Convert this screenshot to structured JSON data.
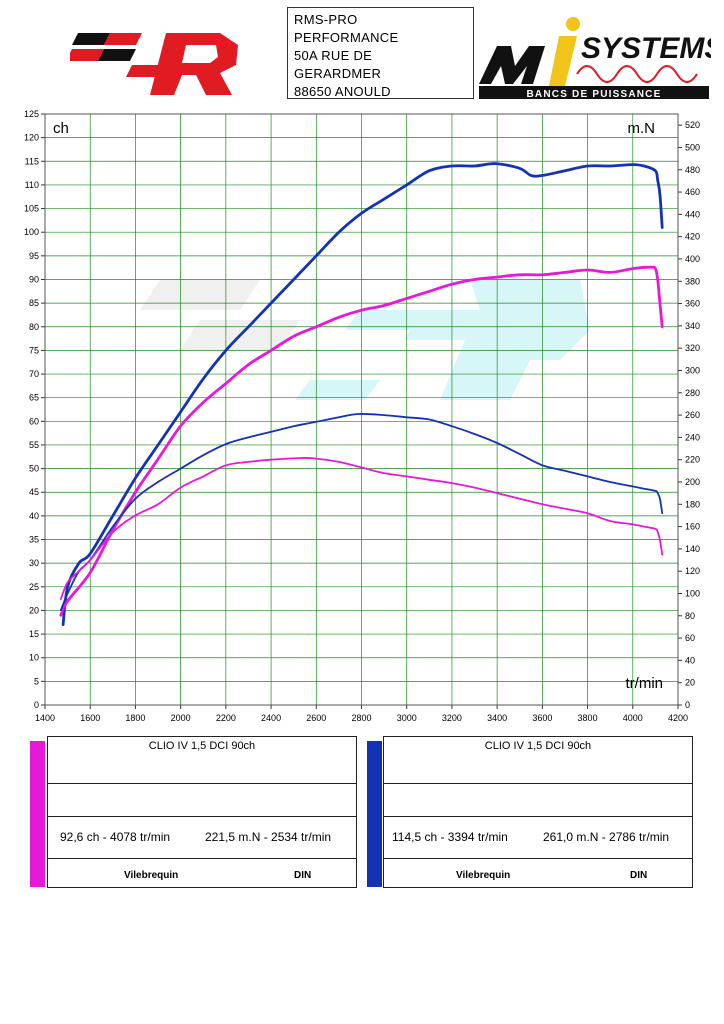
{
  "header": {
    "address_lines": [
      "RMS-PRO",
      "PERFORMANCE",
      "50A RUE DE",
      "GERARDMER",
      "88650 ANOULD"
    ],
    "right_logo": {
      "name": "SYSTEMS",
      "tagline": "BANCS DE PUISSANCE"
    }
  },
  "colors": {
    "magenta": "#e619d9",
    "blue": "#1432b4",
    "grid": "#1e8a1e"
  },
  "chart_data": {
    "type": "line",
    "x_axis": {
      "label": "tr/min",
      "min": 1400,
      "max": 4200,
      "ticks": [
        1400,
        1600,
        1800,
        2000,
        2200,
        2400,
        2600,
        2800,
        3000,
        3200,
        3400,
        3600,
        3800,
        4000,
        4200
      ]
    },
    "y_left": {
      "label": "ch",
      "min": 0,
      "max": 125,
      "ticks": [
        0,
        5,
        10,
        15,
        20,
        25,
        30,
        35,
        40,
        45,
        50,
        55,
        60,
        65,
        70,
        75,
        80,
        85,
        90,
        95,
        100,
        105,
        110,
        115,
        120,
        125
      ]
    },
    "y_right": {
      "label": "m.N",
      "min": 0,
      "max": 530,
      "ticks": [
        0,
        20,
        40,
        60,
        80,
        100,
        120,
        140,
        160,
        180,
        200,
        220,
        240,
        260,
        280,
        300,
        320,
        340,
        360,
        380,
        400,
        420,
        440,
        460,
        480,
        500,
        520
      ]
    },
    "grid": true,
    "series": [
      {
        "color": "#1432b4",
        "axis": "left",
        "kind": "power",
        "x": [
          1480,
          1500,
          1550,
          1600,
          1700,
          1800,
          1900,
          2000,
          2100,
          2200,
          2300,
          2400,
          2500,
          2600,
          2700,
          2800,
          2900,
          3000,
          3100,
          3200,
          3300,
          3394,
          3500,
          3550,
          3600,
          3700,
          3800,
          3900,
          4000,
          4050,
          4100,
          4110,
          4120,
          4130
        ],
        "y": [
          17,
          25,
          30,
          32,
          40,
          48,
          55,
          62,
          69,
          75,
          80,
          85,
          90,
          95,
          100,
          104,
          107,
          110,
          113,
          114,
          114,
          114.5,
          113.5,
          112,
          112,
          113,
          114,
          114,
          114.3,
          114,
          113,
          111,
          108,
          101
        ]
      },
      {
        "color": "#e619d9",
        "axis": "left",
        "kind": "power",
        "x": [
          1470,
          1500,
          1600,
          1700,
          1800,
          1900,
          2000,
          2100,
          2200,
          2300,
          2400,
          2500,
          2600,
          2700,
          2800,
          2900,
          3000,
          3100,
          3200,
          3300,
          3400,
          3500,
          3600,
          3700,
          3800,
          3900,
          4000,
          4078,
          4100,
          4110,
          4120,
          4130
        ],
        "y": [
          19,
          22,
          28,
          37,
          45,
          52,
          59,
          64,
          68,
          72,
          75,
          78,
          80,
          82,
          83.5,
          84.5,
          86,
          87.5,
          89,
          90,
          90.5,
          91,
          91,
          91.5,
          92,
          91.5,
          92.3,
          92.6,
          92.3,
          90,
          85,
          80
        ]
      },
      {
        "color": "#1432b4",
        "axis": "right",
        "kind": "torque",
        "x": [
          1470,
          1500,
          1550,
          1600,
          1700,
          1800,
          1900,
          2000,
          2100,
          2200,
          2300,
          2400,
          2500,
          2600,
          2700,
          2786,
          2900,
          3000,
          3100,
          3200,
          3300,
          3400,
          3500,
          3600,
          3700,
          3800,
          3900,
          4000,
          4050,
          4100,
          4110,
          4120,
          4130
        ],
        "y": [
          85,
          100,
          120,
          130,
          160,
          185,
          200,
          212,
          224,
          234,
          240,
          245,
          250,
          254,
          258,
          261.0,
          260,
          258,
          256,
          250,
          243,
          235,
          225,
          215,
          210,
          205,
          200,
          196,
          194,
          192,
          190,
          185,
          172
        ]
      },
      {
        "color": "#e619d9",
        "axis": "right",
        "kind": "torque",
        "x": [
          1470,
          1500,
          1550,
          1600,
          1700,
          1800,
          1900,
          2000,
          2100,
          2200,
          2300,
          2400,
          2534,
          2600,
          2700,
          2800,
          2900,
          3000,
          3100,
          3200,
          3300,
          3400,
          3500,
          3600,
          3700,
          3800,
          3900,
          4000,
          4050,
          4100,
          4110,
          4120,
          4130
        ],
        "y": [
          95,
          110,
          120,
          130,
          155,
          170,
          180,
          195,
          205,
          215,
          218,
          220,
          221.5,
          221,
          218,
          213,
          208,
          205,
          202,
          199,
          195,
          190,
          185,
          180,
          176,
          172,
          165,
          162,
          160,
          158,
          155,
          148,
          135
        ]
      }
    ]
  },
  "results": [
    {
      "color": "#e619d9",
      "vehicle": "CLIO IV 1,5 DCI 90ch",
      "power": "92,6 ch - 4078 tr/min",
      "torque": "221,5 m.N - 2534 tr/min",
      "footer_left": "Vilebrequin",
      "footer_right": "DIN"
    },
    {
      "color": "#1432b4",
      "vehicle": "CLIO IV 1,5 DCI 90ch",
      "power": "114,5 ch - 3394 tr/min",
      "torque": "261,0 m.N - 2786 tr/min",
      "footer_left": "Vilebrequin",
      "footer_right": "DIN"
    }
  ]
}
